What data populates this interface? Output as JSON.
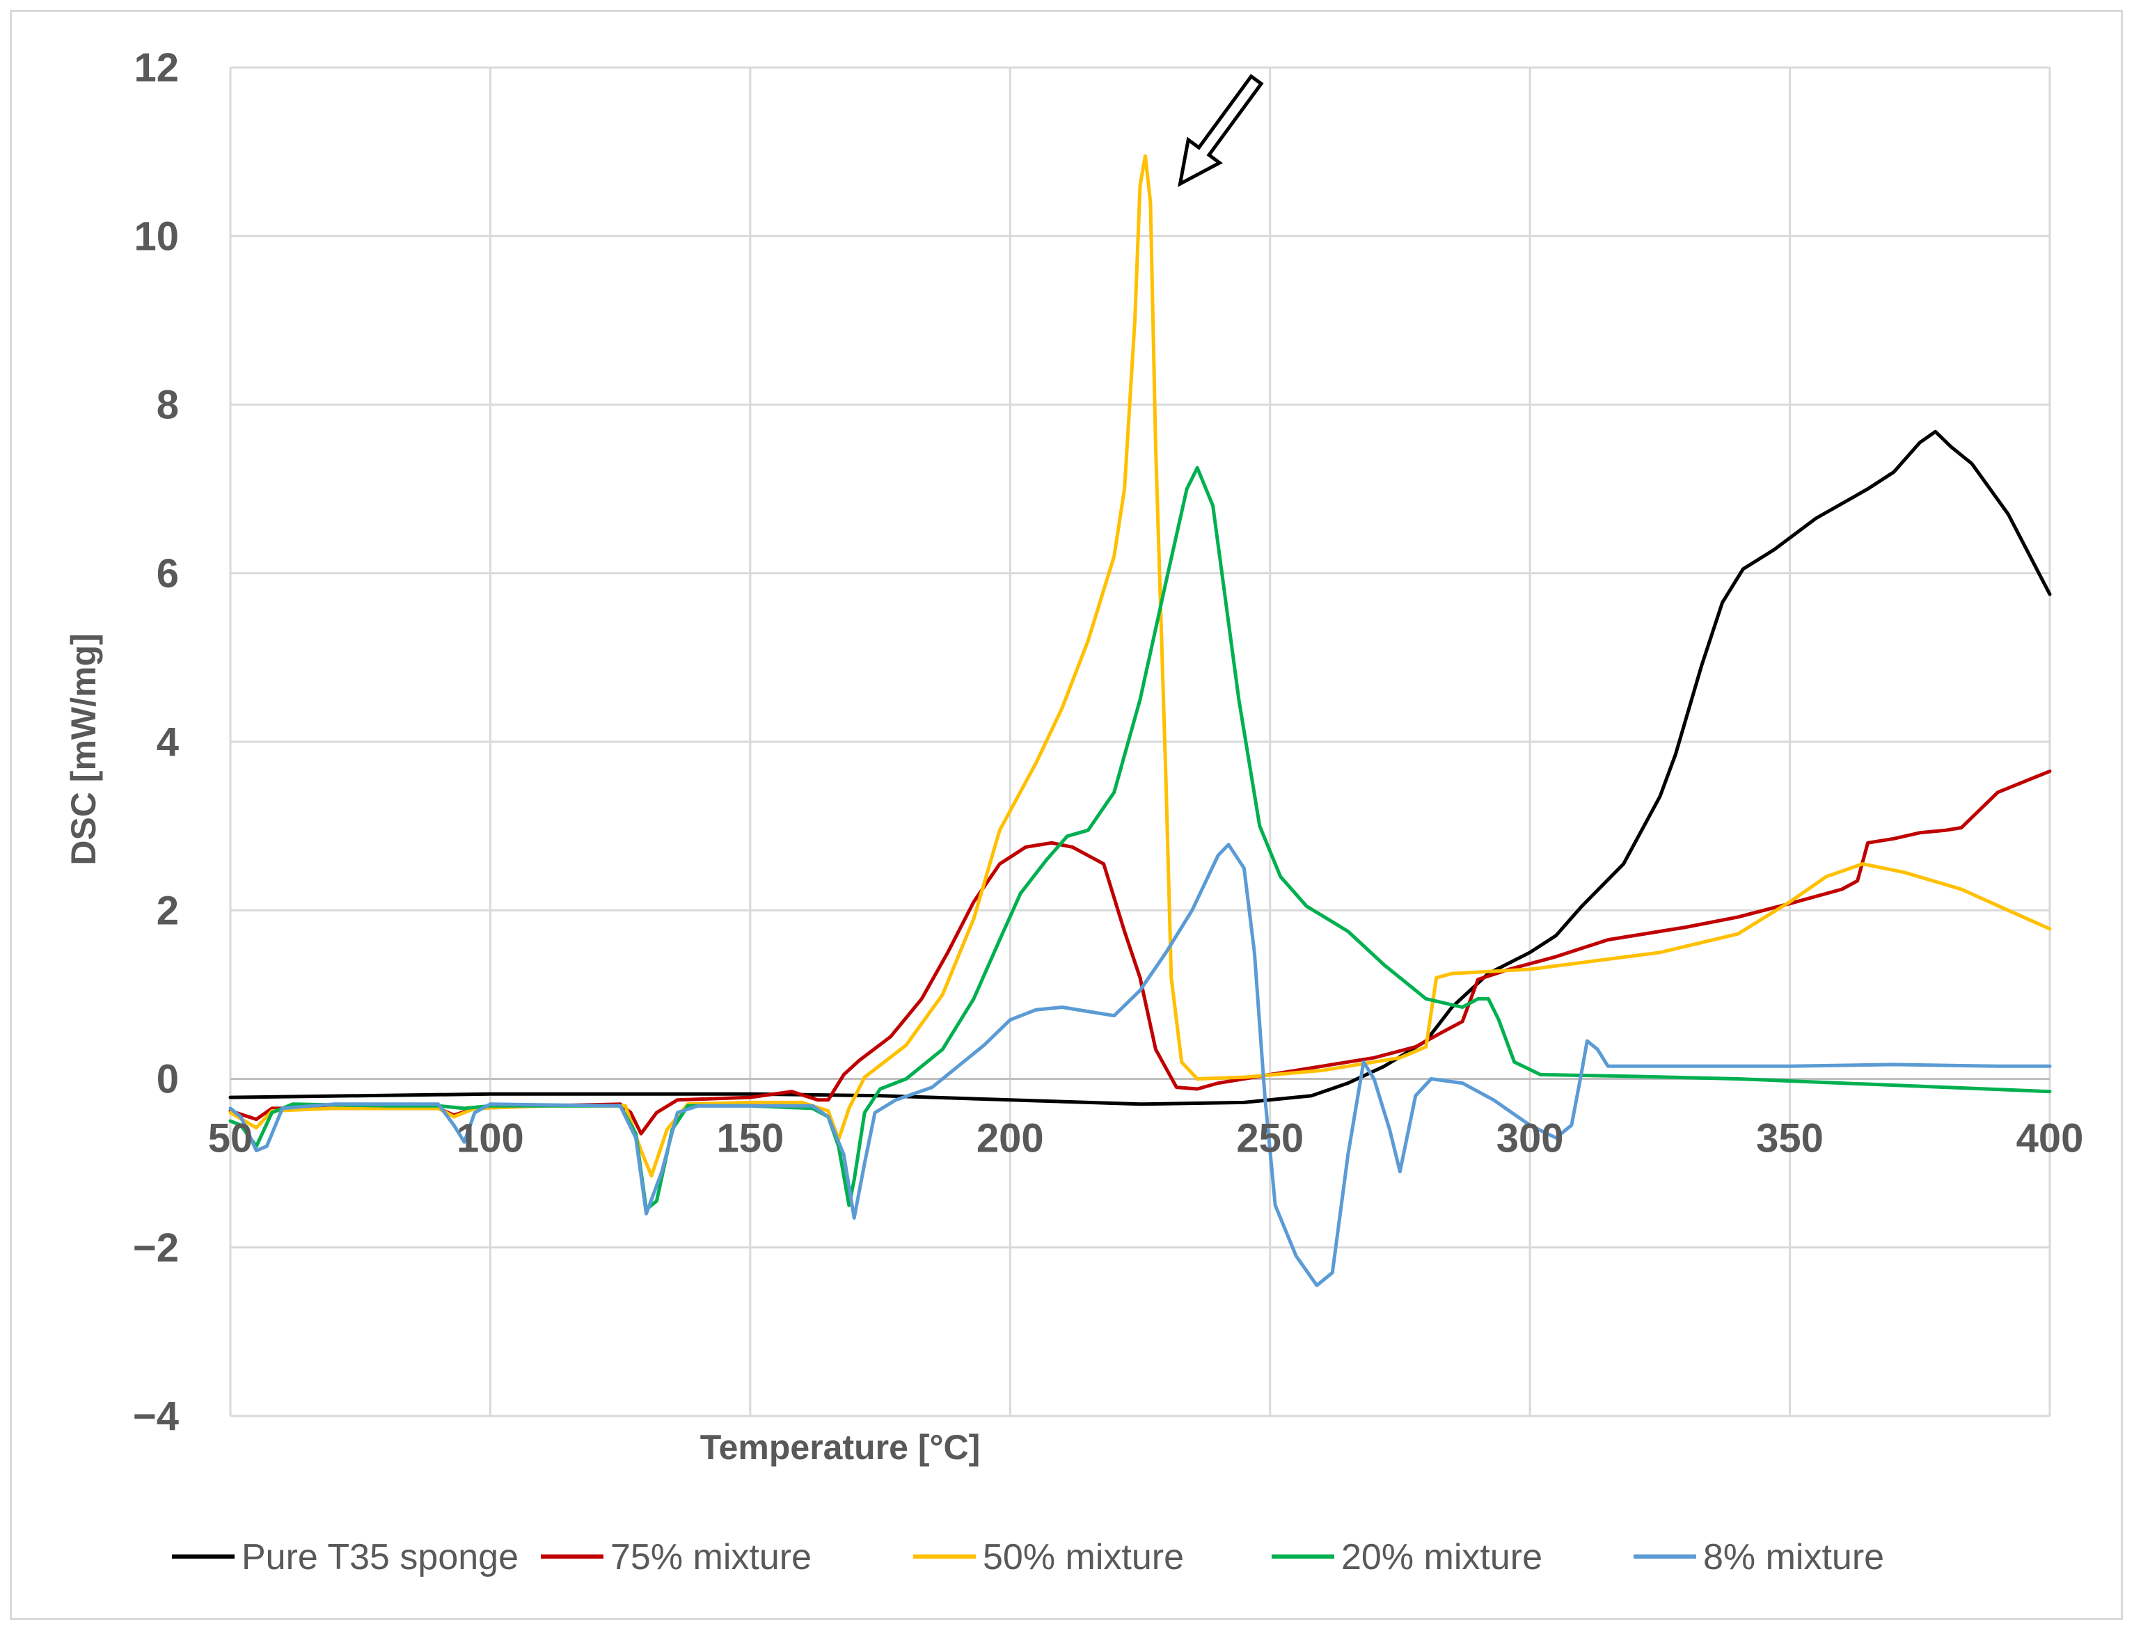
{
  "chart_data": {
    "type": "line",
    "title": "",
    "xlabel": "Temperature [°C]",
    "ylabel": "DSC [mW/mg]",
    "xlim": [
      50,
      400
    ],
    "ylim": [
      -4,
      12
    ],
    "x_ticks": [
      50,
      100,
      150,
      200,
      250,
      300,
      350,
      400
    ],
    "y_ticks": [
      -4,
      -2,
      0,
      2,
      4,
      6,
      8,
      10,
      12
    ],
    "y_tick_labels": [
      "−4",
      "−2",
      "0",
      "2",
      "4",
      "6",
      "8",
      "10",
      "12"
    ],
    "grid": true,
    "legend_position": "bottom",
    "annotation": {
      "type": "arrow",
      "points_to": [
        226,
        10.95
      ]
    },
    "series": [
      {
        "name": "Pure T35 sponge",
        "color": "#000000",
        "points": [
          [
            50,
            -0.22
          ],
          [
            75,
            -0.2
          ],
          [
            100,
            -0.18
          ],
          [
            125,
            -0.18
          ],
          [
            150,
            -0.18
          ],
          [
            175,
            -0.2
          ],
          [
            200,
            -0.25
          ],
          [
            225,
            -0.3
          ],
          [
            245,
            -0.28
          ],
          [
            258,
            -0.2
          ],
          [
            265,
            -0.05
          ],
          [
            272,
            0.15
          ],
          [
            280,
            0.45
          ],
          [
            285,
            0.85
          ],
          [
            292,
            1.25
          ],
          [
            300,
            1.5
          ],
          [
            305,
            1.7
          ],
          [
            310,
            2.05
          ],
          [
            318,
            2.55
          ],
          [
            325,
            3.35
          ],
          [
            328,
            3.85
          ],
          [
            333,
            4.9
          ],
          [
            337,
            5.65
          ],
          [
            341,
            6.05
          ],
          [
            347,
            6.28
          ],
          [
            355,
            6.65
          ],
          [
            365,
            7.0
          ],
          [
            370,
            7.2
          ],
          [
            375,
            7.55
          ],
          [
            378,
            7.68
          ],
          [
            381,
            7.5
          ],
          [
            385,
            7.3
          ],
          [
            392,
            6.7
          ],
          [
            400,
            5.75
          ]
        ]
      },
      {
        "name": "75% mixture",
        "color": "#c00000",
        "points": [
          [
            50,
            -0.38
          ],
          [
            55,
            -0.48
          ],
          [
            58,
            -0.35
          ],
          [
            70,
            -0.35
          ],
          [
            90,
            -0.35
          ],
          [
            93,
            -0.43
          ],
          [
            97,
            -0.35
          ],
          [
            110,
            -0.32
          ],
          [
            125,
            -0.3
          ],
          [
            127,
            -0.4
          ],
          [
            129,
            -0.65
          ],
          [
            132,
            -0.4
          ],
          [
            136,
            -0.25
          ],
          [
            150,
            -0.22
          ],
          [
            158,
            -0.15
          ],
          [
            163,
            -0.25
          ],
          [
            165,
            -0.25
          ],
          [
            168,
            0.05
          ],
          [
            171,
            0.22
          ],
          [
            177,
            0.5
          ],
          [
            183,
            0.95
          ],
          [
            188,
            1.5
          ],
          [
            193,
            2.1
          ],
          [
            198,
            2.55
          ],
          [
            203,
            2.75
          ],
          [
            208,
            2.8
          ],
          [
            212,
            2.75
          ],
          [
            218,
            2.55
          ],
          [
            222,
            1.75
          ],
          [
            225,
            1.2
          ],
          [
            228,
            0.35
          ],
          [
            232,
            -0.1
          ],
          [
            236,
            -0.12
          ],
          [
            240,
            -0.05
          ],
          [
            250,
            0.05
          ],
          [
            260,
            0.15
          ],
          [
            270,
            0.25
          ],
          [
            278,
            0.38
          ],
          [
            283,
            0.55
          ],
          [
            287,
            0.68
          ],
          [
            290,
            1.18
          ],
          [
            296,
            1.3
          ],
          [
            305,
            1.45
          ],
          [
            315,
            1.65
          ],
          [
            330,
            1.8
          ],
          [
            340,
            1.92
          ],
          [
            350,
            2.08
          ],
          [
            360,
            2.25
          ],
          [
            363,
            2.35
          ],
          [
            365,
            2.8
          ],
          [
            370,
            2.85
          ],
          [
            375,
            2.92
          ],
          [
            380,
            2.95
          ],
          [
            383,
            2.98
          ],
          [
            390,
            3.4
          ],
          [
            400,
            3.65
          ]
        ]
      },
      {
        "name": "50% mixture",
        "color": "#ffc000",
        "points": [
          [
            50,
            -0.4
          ],
          [
            55,
            -0.58
          ],
          [
            58,
            -0.38
          ],
          [
            70,
            -0.35
          ],
          [
            90,
            -0.35
          ],
          [
            93,
            -0.45
          ],
          [
            97,
            -0.35
          ],
          [
            110,
            -0.32
          ],
          [
            126,
            -0.32
          ],
          [
            129,
            -0.85
          ],
          [
            131,
            -1.15
          ],
          [
            134,
            -0.6
          ],
          [
            138,
            -0.3
          ],
          [
            150,
            -0.28
          ],
          [
            160,
            -0.28
          ],
          [
            165,
            -0.38
          ],
          [
            167,
            -0.72
          ],
          [
            169,
            -0.35
          ],
          [
            172,
            0.02
          ],
          [
            180,
            0.4
          ],
          [
            187,
            1.0
          ],
          [
            193,
            1.9
          ],
          [
            198,
            2.95
          ],
          [
            205,
            3.75
          ],
          [
            210,
            4.4
          ],
          [
            215,
            5.2
          ],
          [
            220,
            6.2
          ],
          [
            222,
            7.0
          ],
          [
            224,
            9.0
          ],
          [
            225,
            10.6
          ],
          [
            226,
            10.95
          ],
          [
            227,
            10.4
          ],
          [
            228,
            7.5
          ],
          [
            230,
            3.5
          ],
          [
            231,
            1.2
          ],
          [
            233,
            0.2
          ],
          [
            236,
            0.0
          ],
          [
            245,
            0.02
          ],
          [
            260,
            0.1
          ],
          [
            275,
            0.25
          ],
          [
            280,
            0.38
          ],
          [
            282,
            1.2
          ],
          [
            285,
            1.25
          ],
          [
            300,
            1.3
          ],
          [
            315,
            1.42
          ],
          [
            325,
            1.5
          ],
          [
            340,
            1.72
          ],
          [
            350,
            2.1
          ],
          [
            357,
            2.4
          ],
          [
            364,
            2.55
          ],
          [
            372,
            2.45
          ],
          [
            383,
            2.25
          ],
          [
            392,
            2.0
          ],
          [
            400,
            1.78
          ]
        ]
      },
      {
        "name": "20% mixture",
        "color": "#00b050",
        "points": [
          [
            50,
            -0.5
          ],
          [
            52,
            -0.55
          ],
          [
            55,
            -0.8
          ],
          [
            58,
            -0.4
          ],
          [
            62,
            -0.3
          ],
          [
            80,
            -0.32
          ],
          [
            90,
            -0.32
          ],
          [
            95,
            -0.35
          ],
          [
            100,
            -0.32
          ],
          [
            125,
            -0.32
          ],
          [
            128,
            -0.65
          ],
          [
            130,
            -1.55
          ],
          [
            132,
            -1.45
          ],
          [
            135,
            -0.6
          ],
          [
            138,
            -0.32
          ],
          [
            150,
            -0.32
          ],
          [
            162,
            -0.35
          ],
          [
            165,
            -0.45
          ],
          [
            167,
            -0.8
          ],
          [
            169,
            -1.5
          ],
          [
            170,
            -1.2
          ],
          [
            172,
            -0.4
          ],
          [
            175,
            -0.12
          ],
          [
            180,
            0.0
          ],
          [
            187,
            0.35
          ],
          [
            193,
            0.95
          ],
          [
            198,
            1.65
          ],
          [
            202,
            2.2
          ],
          [
            207,
            2.6
          ],
          [
            211,
            2.88
          ],
          [
            215,
            2.95
          ],
          [
            220,
            3.4
          ],
          [
            225,
            4.5
          ],
          [
            230,
            5.9
          ],
          [
            234,
            7.0
          ],
          [
            236,
            7.25
          ],
          [
            239,
            6.8
          ],
          [
            244,
            4.5
          ],
          [
            248,
            3.0
          ],
          [
            252,
            2.4
          ],
          [
            257,
            2.05
          ],
          [
            265,
            1.75
          ],
          [
            272,
            1.35
          ],
          [
            280,
            0.95
          ],
          [
            287,
            0.85
          ],
          [
            290,
            0.95
          ],
          [
            292,
            0.95
          ],
          [
            294,
            0.7
          ],
          [
            297,
            0.2
          ],
          [
            302,
            0.05
          ],
          [
            320,
            0.03
          ],
          [
            340,
            0.0
          ],
          [
            360,
            -0.05
          ],
          [
            380,
            -0.1
          ],
          [
            400,
            -0.15
          ]
        ]
      },
      {
        "name": "8% mixture",
        "color": "#5b9bd5",
        "points": [
          [
            50,
            -0.35
          ],
          [
            52,
            -0.45
          ],
          [
            55,
            -0.85
          ],
          [
            57,
            -0.8
          ],
          [
            60,
            -0.35
          ],
          [
            70,
            -0.3
          ],
          [
            90,
            -0.3
          ],
          [
            93,
            -0.55
          ],
          [
            95,
            -0.75
          ],
          [
            97,
            -0.4
          ],
          [
            100,
            -0.3
          ],
          [
            125,
            -0.32
          ],
          [
            128,
            -0.7
          ],
          [
            130,
            -1.6
          ],
          [
            133,
            -1.1
          ],
          [
            136,
            -0.4
          ],
          [
            140,
            -0.32
          ],
          [
            162,
            -0.32
          ],
          [
            165,
            -0.45
          ],
          [
            168,
            -0.9
          ],
          [
            170,
            -1.65
          ],
          [
            172,
            -1.0
          ],
          [
            174,
            -0.4
          ],
          [
            178,
            -0.25
          ],
          [
            185,
            -0.1
          ],
          [
            195,
            0.4
          ],
          [
            200,
            0.7
          ],
          [
            205,
            0.82
          ],
          [
            210,
            0.85
          ],
          [
            215,
            0.8
          ],
          [
            220,
            0.75
          ],
          [
            225,
            1.05
          ],
          [
            230,
            1.5
          ],
          [
            235,
            2.0
          ],
          [
            240,
            2.65
          ],
          [
            242,
            2.78
          ],
          [
            245,
            2.5
          ],
          [
            247,
            1.5
          ],
          [
            249,
            -0.2
          ],
          [
            251,
            -1.5
          ],
          [
            255,
            -2.1
          ],
          [
            259,
            -2.45
          ],
          [
            262,
            -2.3
          ],
          [
            265,
            -0.9
          ],
          [
            268,
            0.2
          ],
          [
            270,
            0.0
          ],
          [
            273,
            -0.6
          ],
          [
            275,
            -1.1
          ],
          [
            278,
            -0.2
          ],
          [
            281,
            0.0
          ],
          [
            287,
            -0.05
          ],
          [
            293,
            -0.25
          ],
          [
            300,
            -0.55
          ],
          [
            305,
            -0.7
          ],
          [
            308,
            -0.55
          ],
          [
            310,
            0.1
          ],
          [
            311,
            0.45
          ],
          [
            313,
            0.35
          ],
          [
            315,
            0.15
          ],
          [
            330,
            0.15
          ],
          [
            350,
            0.15
          ],
          [
            370,
            0.17
          ],
          [
            390,
            0.15
          ],
          [
            400,
            0.15
          ]
        ]
      }
    ]
  }
}
